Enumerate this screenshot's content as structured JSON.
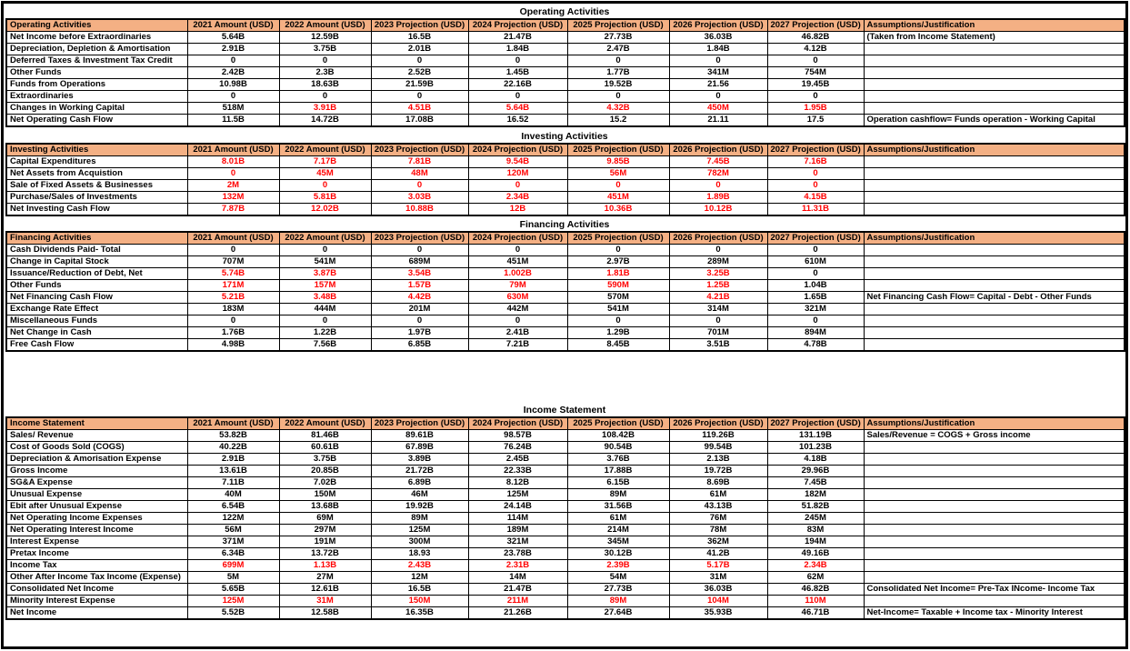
{
  "colors": {
    "header_fill": "#F4B084",
    "negative_text": "#FF0000",
    "text": "#000000",
    "border": "#000000"
  },
  "columns": [
    "2021 Amount (USD)",
    "2022 Amount  (USD)",
    "2023 Projection  (USD)",
    "2024 Projection  (USD)",
    "2025 Projection  (USD)",
    "2026 Projection  (USD)",
    "2027 Projection  (USD)"
  ],
  "assumptions_header": "Assumptions/Justification",
  "sections": [
    {
      "title": "Operating Activities",
      "rows": [
        {
          "label": "Net Income before Extraordinaries",
          "values": [
            "5.64B",
            "12.59B",
            "16.5B",
            "21.47B",
            "27.73B",
            "36.03B",
            "46.82B"
          ],
          "assumption": "(Taken from Income Statement)"
        },
        {
          "label": "Depreciation, Depletion & Amortisation",
          "values": [
            "2.91B",
            "3.75B",
            "2.01B",
            "1.84B",
            "2.47B",
            "1.84B",
            "4.12B"
          ],
          "assumption": ""
        },
        {
          "label": "Deferred Taxes & Investment Tax Credit",
          "values": [
            "0",
            "0",
            "0",
            "0",
            "0",
            "0",
            "0"
          ],
          "assumption": ""
        },
        {
          "label": "Other Funds",
          "values": [
            "2.42B",
            "2.3B",
            "2.52B",
            "1.45B",
            "1.77B",
            "341M",
            "754M"
          ],
          "assumption": ""
        },
        {
          "label": "Funds from Operations",
          "values": [
            "10.98B",
            "18.63B",
            "21.59B",
            "22.16B",
            "19.52B",
            "21.56",
            "19.45B"
          ],
          "assumption": ""
        },
        {
          "label": "Extraordinaries",
          "values": [
            "0",
            "0",
            "0",
            "0",
            "0",
            "0",
            "0"
          ],
          "assumption": ""
        },
        {
          "label": "Changes in Working Capital",
          "values": [
            "518M",
            "3.91B",
            "4.51B",
            "5.64B",
            "4.32B",
            "450M",
            "1.95B"
          ],
          "red": [
            0,
            1,
            1,
            1,
            1,
            1,
            1
          ],
          "assumption": ""
        },
        {
          "label": "Net Operating Cash Flow",
          "values": [
            "11.5B",
            "14.72B",
            "17.08B",
            "16.52",
            "15.2",
            "21.11",
            "17.5"
          ],
          "assumption": "Operation cashflow= Funds operation - Working Capital"
        }
      ]
    },
    {
      "title": "Investing Activities",
      "rows": [
        {
          "label": "Capital Expenditures",
          "values": [
            "8.01B",
            "7.17B",
            "7.81B",
            "9.54B",
            "9.85B",
            "7.45B",
            "7.16B"
          ],
          "red": "all",
          "assumption": ""
        },
        {
          "label": "Net Assets from Acquistion",
          "values": [
            "0",
            "45M",
            "48M",
            "120M",
            "56M",
            "782M",
            "0"
          ],
          "red": "all",
          "assumption": ""
        },
        {
          "label": "Sale of Fixed Assets & Businesses",
          "values": [
            "2M",
            "0",
            "0",
            "0",
            "0",
            "0",
            "0"
          ],
          "red": "all",
          "assumption": ""
        },
        {
          "label": "Purchase/Sales of Investments",
          "values": [
            "132M",
            "5.81B",
            "3.03B",
            "2.34B",
            "451M",
            "1.89B",
            "4.15B"
          ],
          "red": "all",
          "assumption": ""
        },
        {
          "label": "Net Investing Cash Flow",
          "values": [
            "7.87B",
            "12.02B",
            "10.88B",
            "12B",
            "10.36B",
            "10.12B",
            "11.31B"
          ],
          "red": "all",
          "assumption": ""
        }
      ]
    },
    {
      "title": "Financing Activities",
      "rows": [
        {
          "label": "Cash Dividends Paid- Total",
          "values": [
            "0",
            "0",
            "0",
            "0",
            "0",
            "0",
            "0"
          ],
          "assumption": ""
        },
        {
          "label": "Change in Capital Stock",
          "values": [
            "707M",
            "541M",
            "689M",
            "451M",
            "2.97B",
            "289M",
            "610M"
          ],
          "assumption": ""
        },
        {
          "label": "Issuance/Reduction of Debt, Net",
          "values": [
            "5.74B",
            "3.87B",
            "3.54B",
            "1.002B",
            "1.81B",
            "3.25B",
            "0"
          ],
          "red": [
            1,
            1,
            1,
            1,
            1,
            1,
            0
          ],
          "assumption": ""
        },
        {
          "label": "Other Funds",
          "values": [
            "171M",
            "157M",
            "1.57B",
            "79M",
            "590M",
            "1.25B",
            "1.04B"
          ],
          "red": [
            1,
            1,
            1,
            1,
            1,
            1,
            0
          ],
          "assumption": ""
        },
        {
          "label": "Net Financing Cash Flow",
          "values": [
            "5.21B",
            "3.48B",
            "4.42B",
            "630M",
            "570M",
            "4.21B",
            "1.65B"
          ],
          "red": [
            1,
            1,
            1,
            1,
            0,
            1,
            0
          ],
          "assumption": "Net Financing Cash Flow= Capital - Debt - Other Funds"
        },
        {
          "label": "Exchange Rate Effect",
          "values": [
            "183M",
            "444M",
            "201M",
            "442M",
            "541M",
            "314M",
            "321M"
          ],
          "assumption": ""
        },
        {
          "label": "Miscellaneous Funds",
          "values": [
            "0",
            "0",
            "0",
            "0",
            "0",
            "0",
            "0"
          ],
          "assumption": ""
        },
        {
          "label": "Net Change in Cash",
          "values": [
            "1.76B",
            "1.22B",
            "1.97B",
            "2.41B",
            "1.29B",
            "701M",
            "894M"
          ],
          "assumption": ""
        },
        {
          "label": "Free Cash Flow",
          "values": [
            "4.98B",
            "7.56B",
            "6.85B",
            "7.21B",
            "8.45B",
            "3.51B",
            "4.78B"
          ],
          "assumption": ""
        }
      ]
    },
    {
      "title": "Income Statement",
      "rows": [
        {
          "label": "Sales/ Revenue",
          "values": [
            "53.82B",
            "81.46B",
            "89.61B",
            "98.57B",
            "108.42B",
            "119.26B",
            "131.19B"
          ],
          "assumption": "Sales/Revenue = COGS + Gross income"
        },
        {
          "label": "Cost of Goods Sold (COGS)",
          "values": [
            "40.22B",
            "60.61B",
            "67.89B",
            "76.24B",
            "90.54B",
            "99.54B",
            "101.23B"
          ],
          "assumption": ""
        },
        {
          "label": "Depreciation & Amorisation Expense",
          "values": [
            "2.91B",
            "3.75B",
            "3.89B",
            "2.45B",
            "3.76B",
            "2.13B",
            "4.18B"
          ],
          "assumption": ""
        },
        {
          "label": "Gross Income",
          "values": [
            "13.61B",
            "20.85B",
            "21.72B",
            "22.33B",
            "17.88B",
            "19.72B",
            "29.96B"
          ],
          "assumption": ""
        },
        {
          "label": "SG&A Expense",
          "values": [
            "7.11B",
            "7.02B",
            "6.89B",
            "8.12B",
            "6.15B",
            "8.69B",
            "7.45B"
          ],
          "assumption": ""
        },
        {
          "label": "Unusual Expense",
          "values": [
            "40M",
            "150M",
            "46M",
            "125M",
            "89M",
            "61M",
            "182M"
          ],
          "assumption": ""
        },
        {
          "label": "Ebit after Unusual Expense",
          "values": [
            "6.54B",
            "13.68B",
            "19.92B",
            "24.14B",
            "31.56B",
            "43.13B",
            "51.82B"
          ],
          "assumption": ""
        },
        {
          "label": "Net Operating Income Expenses",
          "values": [
            "122M",
            "69M",
            "89M",
            "114M",
            "61M",
            "76M",
            "245M"
          ],
          "assumption": ""
        },
        {
          "label": "Net Operating Interest Income",
          "values": [
            "56M",
            "297M",
            "125M",
            "189M",
            "214M",
            "78M",
            "83M"
          ],
          "assumption": ""
        },
        {
          "label": "Interest Expense",
          "values": [
            "371M",
            "191M",
            "300M",
            "321M",
            "345M",
            "362M",
            "194M"
          ],
          "assumption": ""
        },
        {
          "label": "Pretax Income",
          "values": [
            "6.34B",
            "13.72B",
            "18.93",
            "23.78B",
            "30.12B",
            "41.2B",
            "49.16B"
          ],
          "assumption": ""
        },
        {
          "label": "Income Tax",
          "values": [
            "699M",
            "1.13B",
            "2.43B",
            "2.31B",
            "2.39B",
            "5.17B",
            "2.34B"
          ],
          "red": "all",
          "assumption": ""
        },
        {
          "label": "Other After Income Tax Income (Expense)",
          "values": [
            "5M",
            "27M",
            "12M",
            "14M",
            "54M",
            "31M",
            "62M"
          ],
          "assumption": ""
        },
        {
          "label": "Consolidated Net Income",
          "values": [
            "5.65B",
            "12.61B",
            "16.5B",
            "21.47B",
            "27.73B",
            "36.03B",
            "46.82B"
          ],
          "assumption": "Consolidated Net Income= Pre-Tax INcome- Income Tax"
        },
        {
          "label": "Minority Interest Expense",
          "values": [
            "125M",
            "31M",
            "150M",
            "211M",
            "89M",
            "104M",
            "110M"
          ],
          "red": "all",
          "assumption": ""
        },
        {
          "label": "Net Income",
          "values": [
            "5.52B",
            "12.58B",
            "16.35B",
            "21.26B",
            "27.64B",
            "35.93B",
            "46.71B"
          ],
          "assumption": "Net-Income= Taxable + Income tax - Minority Interest"
        }
      ]
    }
  ]
}
